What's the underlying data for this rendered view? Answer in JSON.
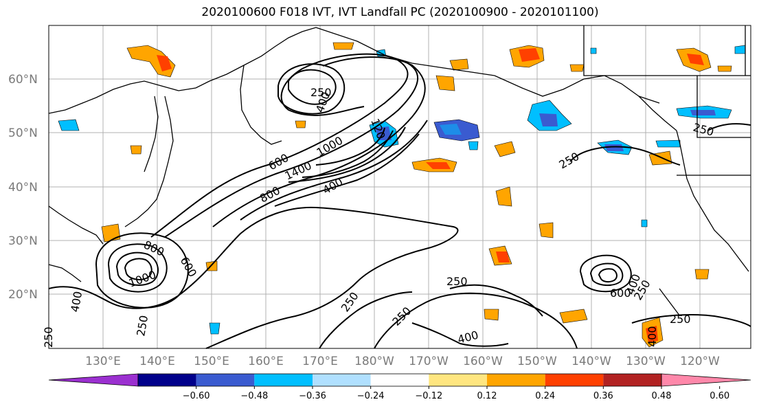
{
  "title": "2020100600 F018 IVT, IVT Landfall PC (2020100900 - 2020101100)",
  "map": {
    "lat_labels": [
      "60°N",
      "50°N",
      "40°N",
      "30°N",
      "20°N"
    ],
    "lon_labels": [
      "130°E",
      "140°E",
      "150°E",
      "160°E",
      "170°E",
      "180°W",
      "170°W",
      "160°W",
      "150°W",
      "140°W",
      "130°W",
      "120°W"
    ],
    "contour_labels": [
      "250",
      "400",
      "120",
      "1000",
      "1400",
      "600",
      "800",
      "400",
      "250",
      "800",
      "600",
      "1000",
      "400",
      "250",
      "250",
      "250",
      "250",
      "400",
      "250",
      "600",
      "400",
      "250",
      "250",
      "400",
      "250"
    ],
    "colors": {
      "ocean": "#ffffff",
      "coast": "#000000",
      "grid": "#b0b0b0"
    }
  },
  "colorbar": {
    "ticks": [
      "−0.60",
      "−0.48",
      "−0.36",
      "−0.24",
      "−0.12",
      "0.12",
      "0.24",
      "0.36",
      "0.48",
      "0.60"
    ],
    "colors": [
      "#9b30d0",
      "#00008b",
      "#3a5bd0",
      "#00bfff",
      "#b0e0ff",
      "#ffffff",
      "#ffe680",
      "#ffa500",
      "#ff4000",
      "#b22222",
      "#ff88aa"
    ]
  }
}
